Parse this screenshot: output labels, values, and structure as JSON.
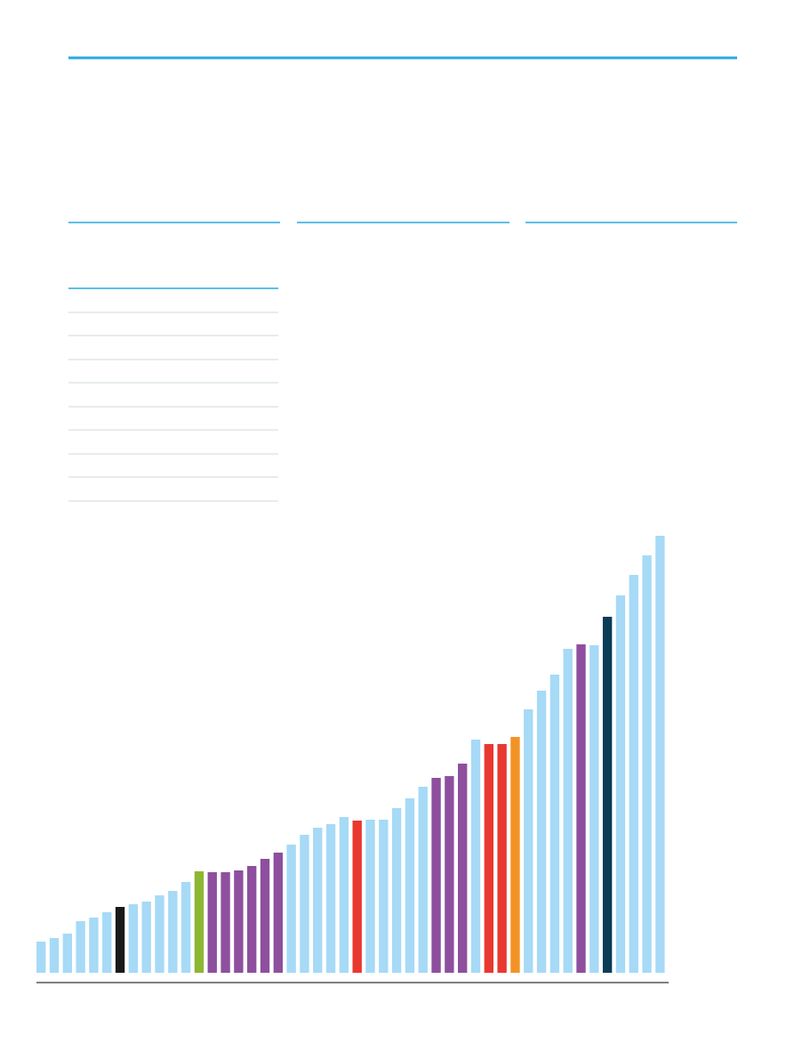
{
  "chart_data": {
    "type": "bar",
    "values": [
      35,
      39,
      44,
      58,
      62,
      68,
      74,
      77,
      80,
      87,
      92,
      102,
      114,
      113,
      113,
      115,
      120,
      128,
      135,
      144,
      155,
      163,
      167,
      175,
      171,
      172,
      172,
      185,
      196,
      209,
      219,
      221,
      235,
      262,
      257,
      257,
      265,
      296,
      317,
      335,
      364,
      369,
      368,
      400,
      424,
      447,
      469,
      491
    ],
    "colors": [
      "#a6daf6",
      "#a6daf6",
      "#a6daf6",
      "#a6daf6",
      "#a6daf6",
      "#a6daf6",
      "#1a1a1a",
      "#a6daf6",
      "#a6daf6",
      "#a6daf6",
      "#a6daf6",
      "#a6daf6",
      "#8db633",
      "#8e4f9e",
      "#8e4f9e",
      "#8e4f9e",
      "#8e4f9e",
      "#8e4f9e",
      "#8e4f9e",
      "#a6daf6",
      "#a6daf6",
      "#a6daf6",
      "#a6daf6",
      "#a6daf6",
      "#e8382f",
      "#a6daf6",
      "#a6daf6",
      "#a6daf6",
      "#a6daf6",
      "#a6daf6",
      "#8e4f9e",
      "#8e4f9e",
      "#8e4f9e",
      "#a6daf6",
      "#e8382f",
      "#e8382f",
      "#f39325",
      "#a6daf6",
      "#a6daf6",
      "#a6daf6",
      "#a6daf6",
      "#8e4f9e",
      "#a6daf6",
      "#0a3d57",
      "#a6daf6",
      "#a6daf6",
      "#a6daf6",
      "#a6daf6"
    ],
    "ylim": [
      0,
      500
    ]
  }
}
